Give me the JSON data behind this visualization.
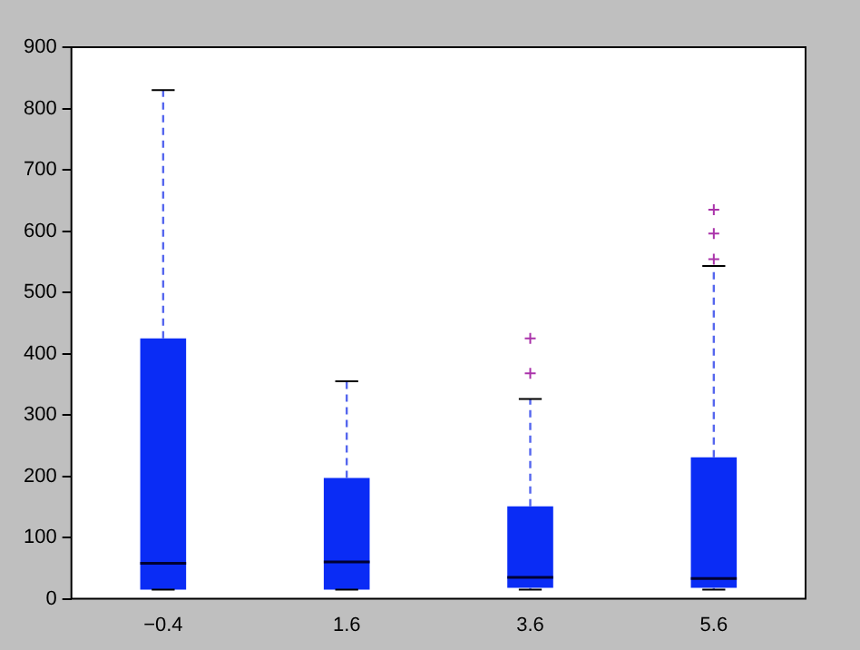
{
  "chart_data": {
    "type": "box",
    "categories": [
      "−0.4",
      "1.6",
      "3.6",
      "5.6"
    ],
    "color": "#0a2cf5",
    "boxes": [
      {
        "low": 15,
        "q1": 15,
        "median": 58,
        "q3": 425,
        "high": 830
      },
      {
        "low": 15,
        "q1": 15,
        "median": 60,
        "q3": 197,
        "high": 355
      },
      {
        "low": 15,
        "q1": 18,
        "median": 35,
        "q3": 151,
        "high": 326,
        "outliers": [
          368,
          425
        ]
      },
      {
        "low": 15,
        "q1": 18,
        "median": 33,
        "q3": 231,
        "high": 543,
        "outliers": [
          554,
          596,
          635
        ]
      }
    ],
    "ylim": [
      0,
      900
    ],
    "yticks": [
      0,
      100,
      200,
      300,
      400,
      500,
      600,
      700,
      800,
      900
    ],
    "grid": false,
    "legend": false
  }
}
